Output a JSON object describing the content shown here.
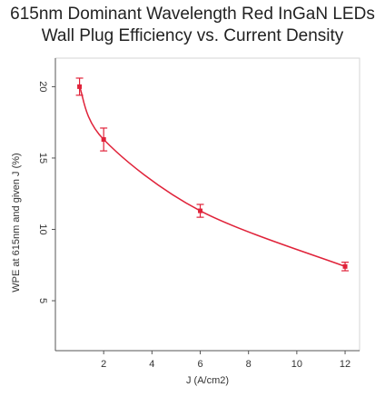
{
  "chart_data": {
    "type": "line",
    "title_lines": [
      "615nm Dominant Wavelength Red InGaN LEDs",
      "Wall Plug Efficiency vs. Current Density"
    ],
    "xlabel": "J (A/cm2)",
    "ylabel": "WPE at 615nm and given J (%)",
    "xlim": [
      0,
      12.6
    ],
    "ylim": [
      1.5,
      22
    ],
    "xticks": [
      2,
      4,
      6,
      8,
      10,
      12
    ],
    "yticks": [
      5,
      10,
      15,
      20
    ],
    "grid": false,
    "series": [
      {
        "color": "#e0233a",
        "smooth": true,
        "points": [
          {
            "x": 1.0,
            "y": 20.0,
            "err": 0.6
          },
          {
            "x": 2.0,
            "y": 16.3,
            "err": 0.8
          },
          {
            "x": 6.0,
            "y": 11.3,
            "err": 0.45
          },
          {
            "x": 12.0,
            "y": 7.4,
            "err": 0.3
          }
        ]
      }
    ]
  }
}
